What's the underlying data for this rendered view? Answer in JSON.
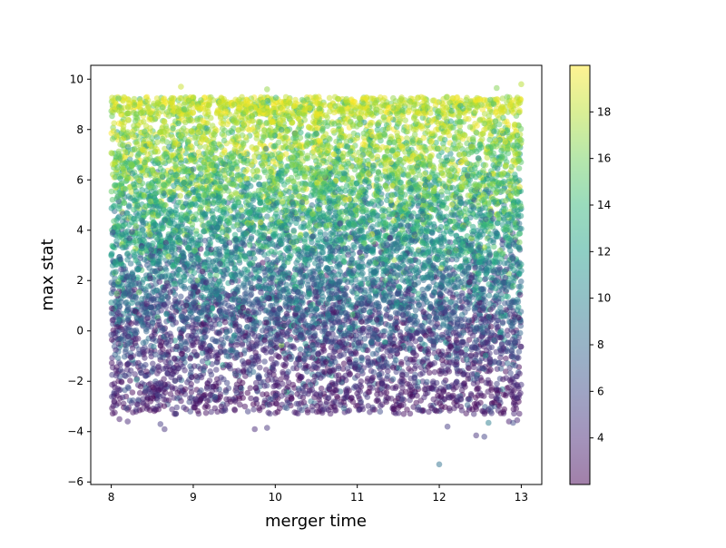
{
  "chart_data": {
    "type": "scatter",
    "title": "",
    "xlabel": "merger time",
    "ylabel": "max stat",
    "xlim": [
      7.75,
      13.25
    ],
    "ylim": [
      -6.1,
      10.55
    ],
    "x_ticks": [
      8,
      9,
      10,
      11,
      12,
      13
    ],
    "x_tick_labels": [
      "8",
      "9",
      "10",
      "11",
      "12",
      "13"
    ],
    "y_ticks": [
      -6,
      -4,
      -2,
      0,
      2,
      4,
      6,
      8,
      10
    ],
    "y_tick_labels": [
      "−6",
      "−4",
      "−2",
      "0",
      "2",
      "4",
      "6",
      "8",
      "10"
    ],
    "grid": false,
    "legend": "none",
    "marker_alpha": 0.5,
    "colorbar": {
      "colormap": "viridis",
      "range": [
        2,
        20
      ],
      "ticks": [
        4,
        6,
        8,
        10,
        12,
        14,
        16,
        18
      ],
      "tick_labels": [
        "4",
        "6",
        "8",
        "10",
        "12",
        "14",
        "16",
        "18"
      ],
      "stops": [
        "#440154",
        "#482878",
        "#3e4a89",
        "#31688e",
        "#26828e",
        "#1f9e89",
        "#35b779",
        "#6ece58",
        "#b5de2b",
        "#fde725"
      ]
    },
    "point_counts": {
      "total": 10000
    },
    "band_points": [
      {
        "x": 8.1,
        "y": -3.5,
        "c": 3.5
      },
      {
        "x": 8.2,
        "y": -3.6,
        "c": 4.0
      },
      {
        "x": 8.6,
        "y": -3.7,
        "c": 5.0
      },
      {
        "x": 8.65,
        "y": -3.9,
        "c": 4.5
      },
      {
        "x": 9.75,
        "y": -3.9,
        "c": 4.0
      },
      {
        "x": 9.9,
        "y": -3.85,
        "c": 4.5
      },
      {
        "x": 12.0,
        "y": -5.3,
        "c": 8.5
      },
      {
        "x": 12.1,
        "y": -3.8,
        "c": 5.0
      },
      {
        "x": 12.45,
        "y": -4.15,
        "c": 4.5
      },
      {
        "x": 12.55,
        "y": -4.2,
        "c": 5.5
      },
      {
        "x": 12.6,
        "y": -3.65,
        "c": 9.5
      },
      {
        "x": 12.85,
        "y": -3.6,
        "c": 3.5
      },
      {
        "x": 12.9,
        "y": -3.65,
        "c": 6.0
      },
      {
        "x": 12.95,
        "y": -3.55,
        "c": 4.0
      },
      {
        "x": 8.85,
        "y": 9.7,
        "c": 18.5
      },
      {
        "x": 9.9,
        "y": 9.6,
        "c": 17.0
      },
      {
        "x": 13.0,
        "y": 9.8,
        "c": 18.0
      },
      {
        "x": 12.7,
        "y": 9.65,
        "c": 16.5
      }
    ]
  }
}
